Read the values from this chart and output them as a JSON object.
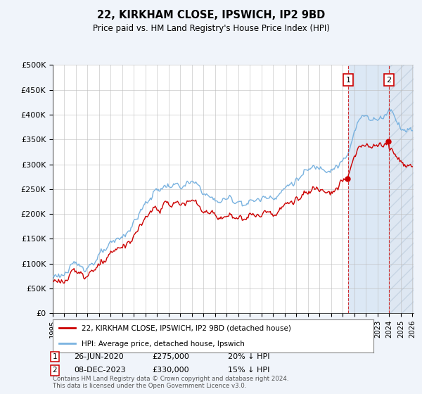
{
  "title": "22, KIRKHAM CLOSE, IPSWICH, IP2 9BD",
  "subtitle": "Price paid vs. HM Land Registry's House Price Index (HPI)",
  "yticks": [
    0,
    50000,
    100000,
    150000,
    200000,
    250000,
    300000,
    350000,
    400000,
    450000,
    500000
  ],
  "ytick_labels": [
    "£0",
    "£50K",
    "£100K",
    "£150K",
    "£200K",
    "£250K",
    "£300K",
    "£350K",
    "£400K",
    "£450K",
    "£500K"
  ],
  "hpi_color": "#7ab3e0",
  "price_color": "#cc0000",
  "shade_color": "#dce8f5",
  "hatch_color": "#c8d8ea",
  "annotation1_label": "1",
  "annotation1_date": "26-JUN-2020",
  "annotation1_price": "£275,000",
  "annotation1_hpi": "20% ↓ HPI",
  "annotation2_label": "2",
  "annotation2_date": "08-DEC-2023",
  "annotation2_price": "£330,000",
  "annotation2_hpi": "15% ↓ HPI",
  "legend_line1": "22, KIRKHAM CLOSE, IPSWICH, IP2 9BD (detached house)",
  "legend_line2": "HPI: Average price, detached house, Ipswich",
  "footnote": "Contains HM Land Registry data © Crown copyright and database right 2024.\nThis data is licensed under the Open Government Licence v3.0.",
  "background_color": "#f0f4fa",
  "plot_background": "#ffffff"
}
